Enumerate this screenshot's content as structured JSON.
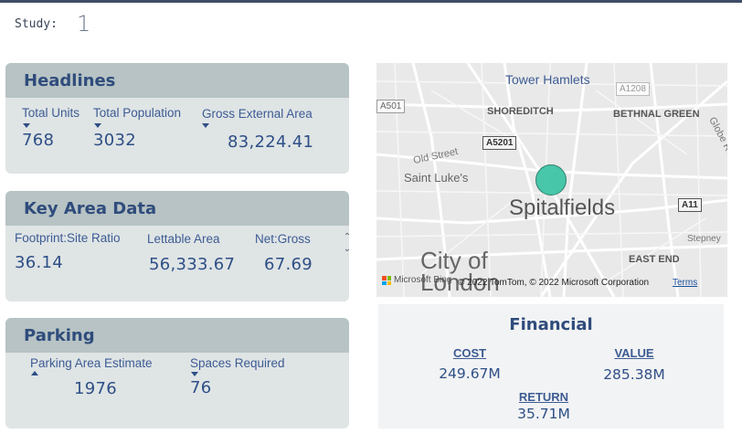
{
  "study": {
    "label": "Study:",
    "value": "1"
  },
  "headlines": {
    "title": "Headlines",
    "fields": [
      {
        "label": "Total Units",
        "value": "768"
      },
      {
        "label": "Total Population",
        "value": "3032"
      },
      {
        "label": "Gross External Area",
        "value": "83,224.41"
      }
    ]
  },
  "key_area": {
    "title": "Key Area Data",
    "fields": [
      {
        "label": "Footprint:Site Ratio",
        "value": "36.14"
      },
      {
        "label": "Lettable Area",
        "value": "56,333.67"
      },
      {
        "label": "Net:Gross",
        "value": "67.69"
      }
    ]
  },
  "parking": {
    "title": "Parking",
    "fields": [
      {
        "label": "Parking Area Estimate",
        "value": "1976"
      },
      {
        "label": "Spaces Required",
        "value": "76"
      }
    ]
  },
  "map": {
    "title": "Tower Hamlets",
    "places": {
      "shoreditch": "SHOREDITCH",
      "bethnal_green": "BETHNAL GREEN",
      "old_street": "Old Street",
      "saint_lukes": "Saint Luke's",
      "spitalfields": "Spitalfields",
      "east_end": "EAST END",
      "stepney": "Stepney",
      "globe_road": "Globe Road",
      "city_of_london": "City of London"
    },
    "roads": {
      "a501": "A501",
      "a1208": "A1208",
      "a5201": "A5201",
      "a11": "A11"
    },
    "attribution": "Microsoft Bing",
    "copyright": "© 2022 TomTom, © 2022 Microsoft Corporation",
    "terms": "Terms",
    "marker_color": "#3fc5a6"
  },
  "financial": {
    "title": "Financial",
    "cost_label": "COST",
    "cost_value": "249.67M",
    "value_label": "VALUE",
    "value_value": "285.38M",
    "return_label": "RETURN",
    "return_value": "35.71M"
  }
}
